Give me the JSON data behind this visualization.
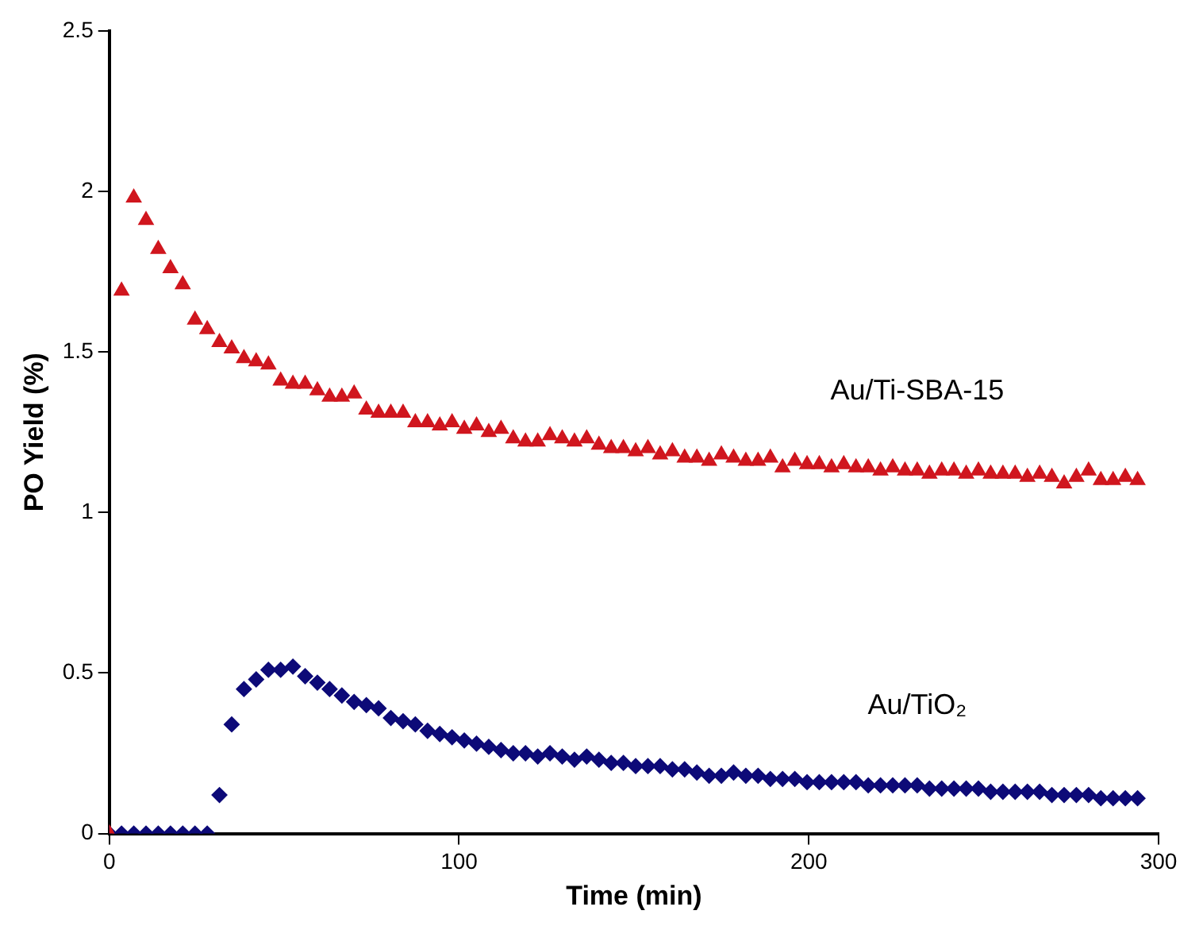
{
  "chart_data": {
    "type": "scatter",
    "xlabel": "Time (min)",
    "ylabel": "PO Yield (%)",
    "xlim": [
      0,
      300
    ],
    "xticks": [
      0,
      100,
      200,
      300
    ],
    "ylim": [
      0,
      2.5
    ],
    "yticks": [
      0,
      0.5,
      1,
      1.5,
      2,
      2.5
    ],
    "grid": false,
    "legend": false,
    "x": [
      0,
      3.5,
      7,
      10.5,
      14,
      17.5,
      21,
      24.5,
      28,
      31.5,
      35,
      38.5,
      42,
      45.5,
      49,
      52.5,
      56,
      59.5,
      63,
      66.5,
      70,
      73.5,
      77,
      80.5,
      84,
      87.5,
      91,
      94.5,
      98,
      101.5,
      105,
      108.5,
      112,
      115.5,
      119,
      122.5,
      126,
      129.5,
      133,
      136.5,
      140,
      143.5,
      147,
      150.5,
      154,
      157.5,
      161,
      164.5,
      168,
      171.5,
      175,
      178.5,
      182,
      185.5,
      189,
      192.5,
      196,
      199.5,
      203,
      206.5,
      210,
      213.5,
      217,
      220.5,
      224,
      227.5,
      231,
      234.5,
      238,
      241.5,
      245,
      248.5,
      252,
      255.5,
      259,
      262.5,
      266,
      269.5,
      273,
      276.5,
      280,
      283.5,
      287,
      290.5,
      294
    ],
    "series": [
      {
        "name": "Au/Ti-SBA-15",
        "color": "#d0161e",
        "marker": "triangle",
        "values": [
          0,
          1.69,
          1.98,
          1.91,
          1.82,
          1.76,
          1.71,
          1.6,
          1.57,
          1.53,
          1.51,
          1.48,
          1.47,
          1.46,
          1.41,
          1.4,
          1.4,
          1.38,
          1.36,
          1.36,
          1.37,
          1.32,
          1.31,
          1.31,
          1.31,
          1.28,
          1.28,
          1.27,
          1.28,
          1.26,
          1.27,
          1.25,
          1.26,
          1.23,
          1.22,
          1.22,
          1.24,
          1.23,
          1.22,
          1.23,
          1.21,
          1.2,
          1.2,
          1.19,
          1.2,
          1.18,
          1.19,
          1.17,
          1.17,
          1.16,
          1.18,
          1.17,
          1.16,
          1.16,
          1.17,
          1.14,
          1.16,
          1.15,
          1.15,
          1.14,
          1.15,
          1.14,
          1.14,
          1.13,
          1.14,
          1.13,
          1.13,
          1.12,
          1.13,
          1.13,
          1.12,
          1.13,
          1.12,
          1.12,
          1.12,
          1.11,
          1.12,
          1.11,
          1.09,
          1.11,
          1.13,
          1.1,
          1.1,
          1.11,
          1.1
        ]
      },
      {
        "name": "Au/TiO₂",
        "color": "#0d0a78",
        "marker": "diamond",
        "values": [
          0,
          0,
          0,
          0,
          0,
          0,
          0,
          0,
          0,
          0.12,
          0.34,
          0.45,
          0.48,
          0.51,
          0.51,
          0.52,
          0.49,
          0.47,
          0.45,
          0.43,
          0.41,
          0.4,
          0.39,
          0.36,
          0.35,
          0.34,
          0.32,
          0.31,
          0.3,
          0.29,
          0.28,
          0.27,
          0.26,
          0.25,
          0.25,
          0.24,
          0.25,
          0.24,
          0.23,
          0.24,
          0.23,
          0.22,
          0.22,
          0.21,
          0.21,
          0.21,
          0.2,
          0.2,
          0.19,
          0.18,
          0.18,
          0.19,
          0.18,
          0.18,
          0.17,
          0.17,
          0.17,
          0.16,
          0.16,
          0.16,
          0.16,
          0.16,
          0.15,
          0.15,
          0.15,
          0.15,
          0.15,
          0.14,
          0.14,
          0.14,
          0.14,
          0.14,
          0.13,
          0.13,
          0.13,
          0.13,
          0.13,
          0.12,
          0.12,
          0.12,
          0.12,
          0.11,
          0.11,
          0.11,
          0.11
        ]
      }
    ]
  }
}
